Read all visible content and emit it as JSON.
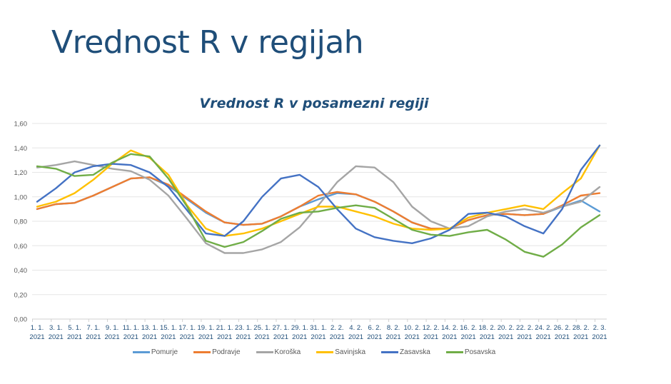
{
  "slide": {
    "title": "Vrednost R v regijah"
  },
  "chart_data": {
    "type": "line",
    "title": "Vrednost R v posamezni regiji",
    "xlabel": "",
    "ylabel": "",
    "ylim": [
      0,
      1.6
    ],
    "yticks": [
      "0,00",
      "0,20",
      "0,40",
      "0,60",
      "0,80",
      "1,00",
      "1,20",
      "1,40",
      "1,60"
    ],
    "grid": true,
    "legend_position": "bottom",
    "categories": [
      "1. 1. 2021",
      "3. 1. 2021",
      "5. 1. 2021",
      "7. 1. 2021",
      "9. 1. 2021",
      "11. 1. 2021",
      "13. 1. 2021",
      "15. 1. 2021",
      "17. 1. 2021",
      "19. 1. 2021",
      "21. 1. 2021",
      "23. 1. 2021",
      "25. 1. 2021",
      "27. 1. 2021",
      "29. 1. 2021",
      "31. 1. 2021",
      "2. 2. 2021",
      "4. 2. 2021",
      "6. 2. 2021",
      "8. 2. 2021",
      "10. 2. 2021",
      "12. 2. 2021",
      "14. 2. 2021",
      "16. 2. 2021",
      "18. 2. 2021",
      "20. 2. 2021",
      "22. 2. 2021",
      "24. 2. 2021",
      "26. 2. 2021",
      "28. 2. 2021",
      "2. 3. 2021"
    ],
    "series": [
      {
        "name": "Pomurje",
        "color": "#5B9BD5",
        "values": [
          0.9,
          0.94,
          0.95,
          1.01,
          1.08,
          1.15,
          1.16,
          1.09,
          0.98,
          0.87,
          0.79,
          0.77,
          0.78,
          0.84,
          0.92,
          0.98,
          1.03,
          1.02,
          0.96,
          0.88,
          0.79,
          0.74,
          0.74,
          0.81,
          0.85,
          0.86,
          0.85,
          0.86,
          0.92,
          0.97,
          0.88
        ]
      },
      {
        "name": "Podravje",
        "color": "#ED7D31",
        "values": [
          0.9,
          0.94,
          0.95,
          1.01,
          1.08,
          1.15,
          1.16,
          1.1,
          0.99,
          0.88,
          0.79,
          0.77,
          0.78,
          0.84,
          0.92,
          1.01,
          1.04,
          1.02,
          0.96,
          0.88,
          0.79,
          0.74,
          0.74,
          0.81,
          0.85,
          0.86,
          0.85,
          0.86,
          0.93,
          1.01,
          1.03
        ]
      },
      {
        "name": "Koroška",
        "color": "#A5A5A5",
        "values": [
          1.24,
          1.26,
          1.29,
          1.26,
          1.23,
          1.21,
          1.14,
          1.01,
          0.82,
          0.62,
          0.54,
          0.54,
          0.57,
          0.63,
          0.75,
          0.93,
          1.12,
          1.25,
          1.24,
          1.12,
          0.92,
          0.8,
          0.74,
          0.76,
          0.84,
          0.88,
          0.9,
          0.87,
          0.92,
          0.96,
          1.08
        ]
      },
      {
        "name": "Savinjska",
        "color": "#FFC000",
        "values": [
          0.92,
          0.96,
          1.03,
          1.14,
          1.27,
          1.38,
          1.32,
          1.18,
          0.93,
          0.74,
          0.68,
          0.7,
          0.74,
          0.8,
          0.86,
          0.92,
          0.92,
          0.88,
          0.84,
          0.78,
          0.74,
          0.73,
          0.74,
          0.83,
          0.87,
          0.9,
          0.93,
          0.9,
          1.03,
          1.15,
          1.42
        ]
      },
      {
        "name": "Zasavska",
        "color": "#4472C4",
        "values": [
          0.96,
          1.07,
          1.2,
          1.25,
          1.27,
          1.26,
          1.2,
          1.08,
          0.89,
          0.7,
          0.68,
          0.8,
          1.0,
          1.15,
          1.18,
          1.08,
          0.9,
          0.74,
          0.67,
          0.64,
          0.62,
          0.66,
          0.73,
          0.86,
          0.87,
          0.84,
          0.76,
          0.7,
          0.9,
          1.22,
          1.42
        ]
      },
      {
        "name": "Posavska",
        "color": "#70AD47",
        "values": [
          1.25,
          1.23,
          1.17,
          1.18,
          1.28,
          1.35,
          1.33,
          1.15,
          0.92,
          0.64,
          0.59,
          0.63,
          0.72,
          0.82,
          0.87,
          0.88,
          0.91,
          0.93,
          0.91,
          0.82,
          0.73,
          0.69,
          0.68,
          0.71,
          0.73,
          0.65,
          0.55,
          0.51,
          0.61,
          0.75,
          0.85
        ]
      }
    ]
  }
}
